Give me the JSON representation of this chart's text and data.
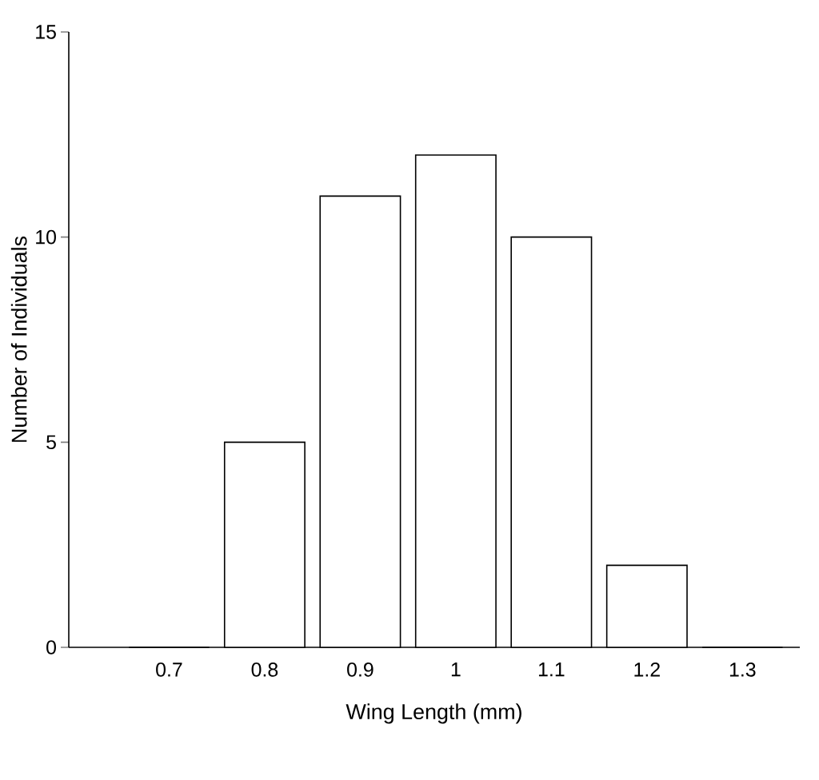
{
  "chart_data": {
    "type": "bar",
    "xlabel": "Wing Length  (mm)",
    "ylabel": "Number of Individuals",
    "categories": [
      "0.7",
      "0.8",
      "0.9",
      "1",
      "1.1",
      "1.2",
      "1.3"
    ],
    "values": [
      0,
      5,
      11,
      12,
      10,
      2,
      0
    ],
    "color": "#ffffff",
    "ylim": [
      0,
      15
    ],
    "yticks": [
      0,
      5,
      10,
      15
    ]
  }
}
